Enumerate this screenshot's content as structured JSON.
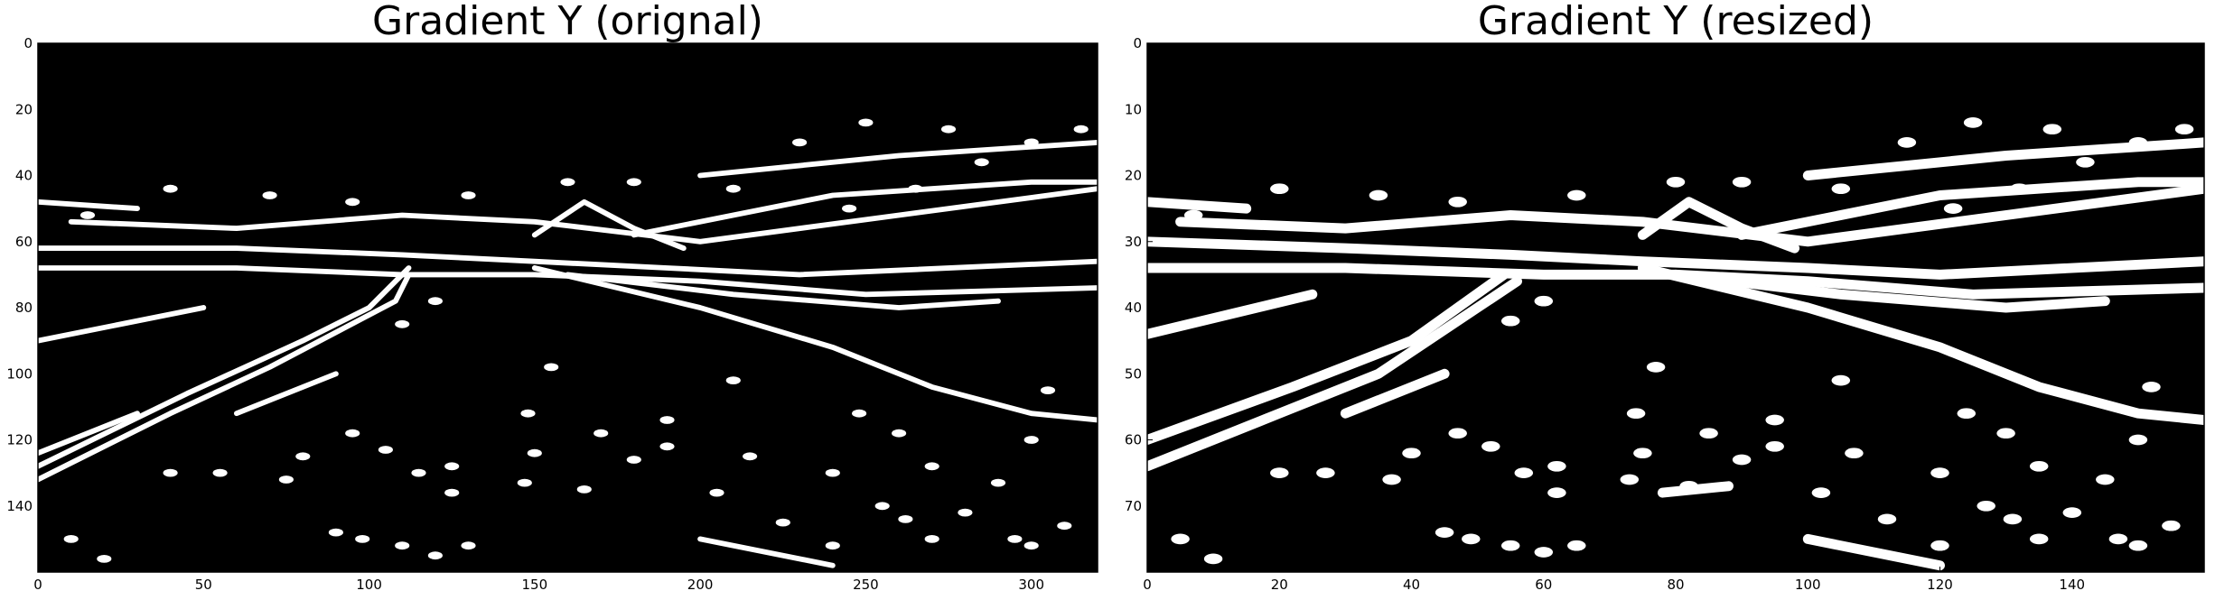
{
  "chart_data": [
    {
      "type": "heatmap",
      "title": "Gradient Y (orignal)",
      "xlabel": "",
      "ylabel": "",
      "xlim": [
        0,
        320
      ],
      "ylim": [
        160,
        0
      ],
      "xticks": [
        0,
        50,
        100,
        150,
        200,
        250,
        300
      ],
      "yticks": [
        0,
        20,
        40,
        60,
        80,
        100,
        120,
        140
      ],
      "colormap": "gray",
      "background": "#000000",
      "foreground": "#ffffff",
      "grid": false,
      "binary_lines": [
        [
          [
            0,
            90
          ],
          [
            50,
            80
          ]
        ],
        [
          [
            0,
            132
          ],
          [
            40,
            112
          ],
          [
            70,
            98
          ],
          [
            108,
            78
          ],
          [
            112,
            70
          ]
        ],
        [
          [
            0,
            128
          ],
          [
            45,
            106
          ],
          [
            80,
            90
          ],
          [
            100,
            80
          ],
          [
            112,
            68
          ]
        ],
        [
          [
            0,
            124
          ],
          [
            30,
            112
          ]
        ],
        [
          [
            0,
            62
          ],
          [
            60,
            62
          ],
          [
            110,
            64
          ],
          [
            150,
            66
          ],
          [
            190,
            68
          ],
          [
            230,
            70
          ],
          [
            320,
            66
          ]
        ],
        [
          [
            0,
            68
          ],
          [
            60,
            68
          ],
          [
            110,
            70
          ],
          [
            150,
            70
          ],
          [
            200,
            72
          ],
          [
            250,
            76
          ],
          [
            320,
            74
          ]
        ],
        [
          [
            150,
            68
          ],
          [
            200,
            80
          ],
          [
            240,
            92
          ],
          [
            270,
            104
          ],
          [
            300,
            112
          ],
          [
            320,
            114
          ]
        ],
        [
          [
            160,
            70
          ],
          [
            210,
            76
          ],
          [
            260,
            80
          ],
          [
            290,
            78
          ]
        ],
        [
          [
            150,
            58
          ],
          [
            165,
            48
          ],
          [
            180,
            56
          ],
          [
            195,
            62
          ]
        ],
        [
          [
            10,
            54
          ],
          [
            60,
            56
          ],
          [
            110,
            52
          ],
          [
            150,
            54
          ],
          [
            200,
            60
          ],
          [
            260,
            52
          ],
          [
            320,
            44
          ]
        ],
        [
          [
            180,
            58
          ],
          [
            240,
            46
          ],
          [
            300,
            42
          ],
          [
            320,
            42
          ]
        ],
        [
          [
            200,
            150
          ],
          [
            240,
            158
          ]
        ],
        [
          [
            0,
            48
          ],
          [
            30,
            50
          ]
        ],
        [
          [
            200,
            40
          ],
          [
            260,
            34
          ],
          [
            320,
            30
          ]
        ],
        [
          [
            60,
            112
          ],
          [
            90,
            100
          ]
        ]
      ],
      "blobs": [
        [
          40,
          130
        ],
        [
          55,
          130
        ],
        [
          75,
          132
        ],
        [
          80,
          125
        ],
        [
          95,
          118
        ],
        [
          105,
          123
        ],
        [
          115,
          130
        ],
        [
          125,
          136
        ],
        [
          147,
          133
        ],
        [
          150,
          124
        ],
        [
          165,
          135
        ],
        [
          170,
          118
        ],
        [
          180,
          126
        ],
        [
          190,
          122
        ],
        [
          205,
          136
        ],
        [
          215,
          125
        ],
        [
          240,
          130
        ],
        [
          248,
          112
        ],
        [
          260,
          118
        ],
        [
          270,
          128
        ],
        [
          290,
          133
        ],
        [
          280,
          142
        ],
        [
          295,
          150
        ],
        [
          310,
          146
        ],
        [
          155,
          98
        ],
        [
          210,
          102
        ],
        [
          300,
          120
        ],
        [
          305,
          105
        ],
        [
          90,
          148
        ],
        [
          98,
          150
        ],
        [
          110,
          152
        ],
        [
          120,
          155
        ],
        [
          130,
          152
        ],
        [
          240,
          152
        ],
        [
          270,
          150
        ],
        [
          300,
          152
        ],
        [
          10,
          150
        ],
        [
          20,
          156
        ],
        [
          125,
          128
        ],
        [
          148,
          112
        ],
        [
          190,
          114
        ],
        [
          255,
          140
        ],
        [
          262,
          144
        ],
        [
          225,
          145
        ],
        [
          110,
          85
        ],
        [
          120,
          78
        ],
        [
          230,
          30
        ],
        [
          250,
          24
        ],
        [
          275,
          26
        ],
        [
          285,
          36
        ],
        [
          300,
          30
        ],
        [
          315,
          26
        ],
        [
          265,
          44
        ],
        [
          245,
          50
        ],
        [
          210,
          44
        ],
        [
          180,
          42
        ],
        [
          160,
          42
        ],
        [
          130,
          46
        ],
        [
          95,
          48
        ],
        [
          70,
          46
        ],
        [
          40,
          44
        ],
        [
          15,
          52
        ]
      ]
    },
    {
      "type": "heatmap",
      "title": "Gradient Y (resized)",
      "xlabel": "",
      "ylabel": "",
      "xlim": [
        0,
        160
      ],
      "ylim": [
        80,
        0
      ],
      "xticks": [
        0,
        20,
        40,
        60,
        80,
        100,
        120,
        140
      ],
      "yticks": [
        0,
        10,
        20,
        30,
        40,
        50,
        60,
        70
      ],
      "colormap": "gray",
      "background": "#000000",
      "foreground": "#ffffff",
      "grid": false,
      "binary_lines": [
        [
          [
            0,
            44
          ],
          [
            25,
            38
          ]
        ],
        [
          [
            0,
            64
          ],
          [
            20,
            56
          ],
          [
            35,
            50
          ],
          [
            50,
            40
          ],
          [
            56,
            36
          ]
        ],
        [
          [
            0,
            60
          ],
          [
            22,
            52
          ],
          [
            40,
            45
          ],
          [
            54,
            35
          ]
        ],
        [
          [
            0,
            30
          ],
          [
            30,
            31
          ],
          [
            55,
            32
          ],
          [
            75,
            33
          ],
          [
            100,
            34
          ],
          [
            120,
            35
          ],
          [
            160,
            33
          ]
        ],
        [
          [
            0,
            34
          ],
          [
            30,
            34
          ],
          [
            60,
            35
          ],
          [
            80,
            35
          ],
          [
            100,
            36
          ],
          [
            125,
            38
          ],
          [
            160,
            37
          ]
        ],
        [
          [
            75,
            34
          ],
          [
            100,
            40
          ],
          [
            120,
            46
          ],
          [
            135,
            52
          ],
          [
            150,
            56
          ],
          [
            160,
            57
          ]
        ],
        [
          [
            80,
            35
          ],
          [
            105,
            38
          ],
          [
            130,
            40
          ],
          [
            145,
            39
          ]
        ],
        [
          [
            75,
            29
          ],
          [
            82,
            24
          ],
          [
            90,
            28
          ],
          [
            98,
            31
          ]
        ],
        [
          [
            5,
            27
          ],
          [
            30,
            28
          ],
          [
            55,
            26
          ],
          [
            75,
            27
          ],
          [
            100,
            30
          ],
          [
            130,
            26
          ],
          [
            160,
            22
          ]
        ],
        [
          [
            90,
            29
          ],
          [
            120,
            23
          ],
          [
            150,
            21
          ],
          [
            160,
            21
          ]
        ],
        [
          [
            100,
            75
          ],
          [
            120,
            79
          ]
        ],
        [
          [
            0,
            24
          ],
          [
            15,
            25
          ]
        ],
        [
          [
            100,
            20
          ],
          [
            130,
            17
          ],
          [
            160,
            15
          ]
        ],
        [
          [
            30,
            56
          ],
          [
            45,
            50
          ]
        ],
        [
          [
            78,
            68
          ],
          [
            88,
            67
          ]
        ]
      ],
      "blobs": [
        [
          20,
          65
        ],
        [
          27,
          65
        ],
        [
          37,
          66
        ],
        [
          40,
          62
        ],
        [
          47,
          59
        ],
        [
          52,
          61
        ],
        [
          57,
          65
        ],
        [
          62,
          68
        ],
        [
          73,
          66
        ],
        [
          75,
          62
        ],
        [
          82,
          67
        ],
        [
          85,
          59
        ],
        [
          90,
          63
        ],
        [
          95,
          61
        ],
        [
          102,
          68
        ],
        [
          107,
          62
        ],
        [
          120,
          65
        ],
        [
          124,
          56
        ],
        [
          130,
          59
        ],
        [
          135,
          64
        ],
        [
          145,
          66
        ],
        [
          140,
          71
        ],
        [
          147,
          75
        ],
        [
          155,
          73
        ],
        [
          77,
          49
        ],
        [
          105,
          51
        ],
        [
          150,
          60
        ],
        [
          152,
          52
        ],
        [
          45,
          74
        ],
        [
          49,
          75
        ],
        [
          55,
          76
        ],
        [
          60,
          77
        ],
        [
          65,
          76
        ],
        [
          120,
          76
        ],
        [
          135,
          75
        ],
        [
          150,
          76
        ],
        [
          5,
          75
        ],
        [
          10,
          78
        ],
        [
          62,
          64
        ],
        [
          74,
          56
        ],
        [
          95,
          57
        ],
        [
          127,
          70
        ],
        [
          131,
          72
        ],
        [
          112,
          72
        ],
        [
          55,
          42
        ],
        [
          60,
          39
        ],
        [
          115,
          15
        ],
        [
          125,
          12
        ],
        [
          137,
          13
        ],
        [
          142,
          18
        ],
        [
          150,
          15
        ],
        [
          157,
          13
        ],
        [
          132,
          22
        ],
        [
          122,
          25
        ],
        [
          105,
          22
        ],
        [
          90,
          21
        ],
        [
          80,
          21
        ],
        [
          65,
          23
        ],
        [
          47,
          24
        ],
        [
          35,
          23
        ],
        [
          20,
          22
        ],
        [
          7,
          26
        ]
      ]
    }
  ]
}
